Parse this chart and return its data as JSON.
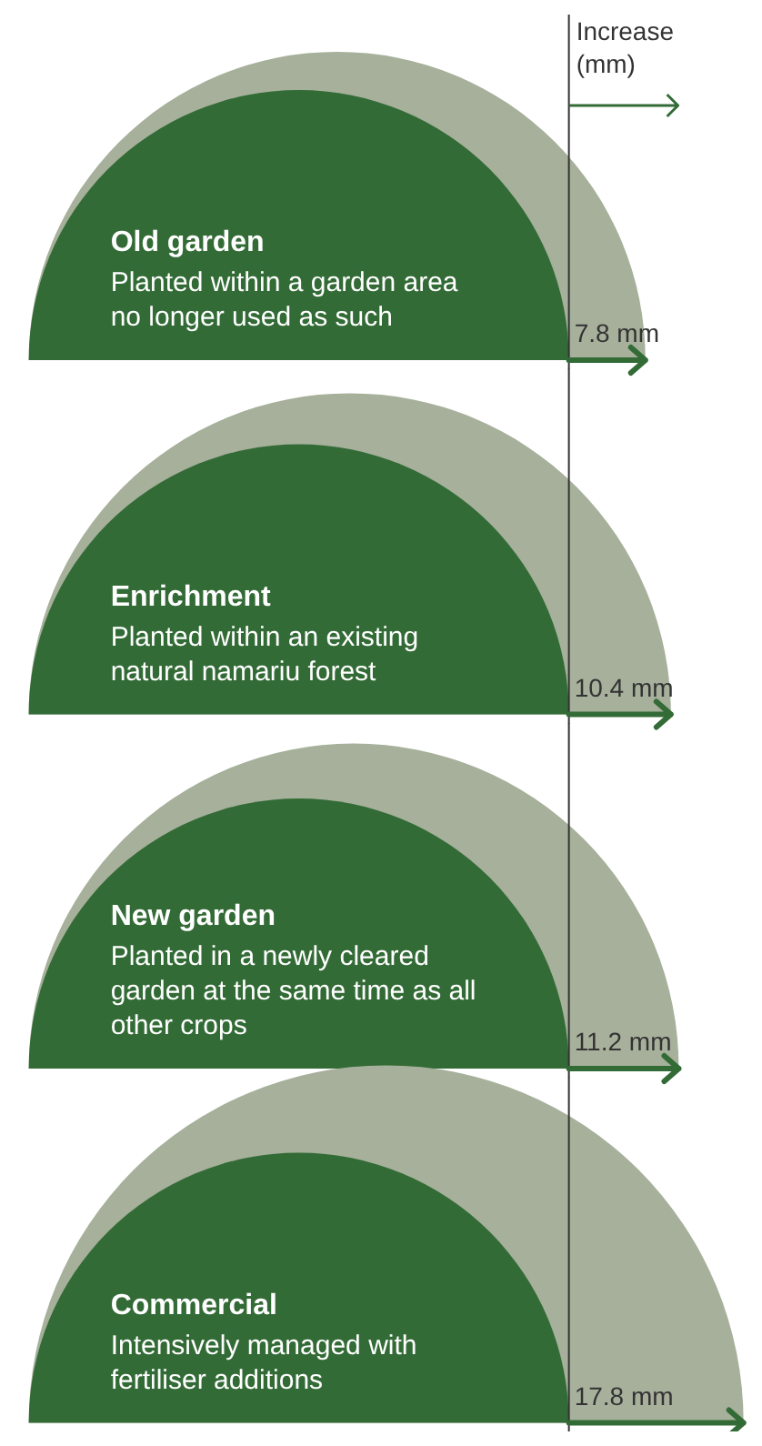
{
  "chart_data": {
    "type": "other",
    "xlabel": "Increase (mm)",
    "categories": [
      "Old garden",
      "Enrichment",
      "New garden",
      "Commercial"
    ],
    "values": [
      7.8,
      10.4,
      11.2,
      17.8
    ],
    "value_labels": [
      "7.8 mm",
      "10.4 mm",
      "11.2 mm",
      "17.8 mm"
    ],
    "color": "#a6b09b",
    "annotations": [
      "Planted within a garden area no longer used as such",
      "Planted within an existing natural namariu forest",
      "Planted in a newly cleared garden at the same time as all other crops",
      "Intensively managed with fertiliser additions"
    ]
  }
}
